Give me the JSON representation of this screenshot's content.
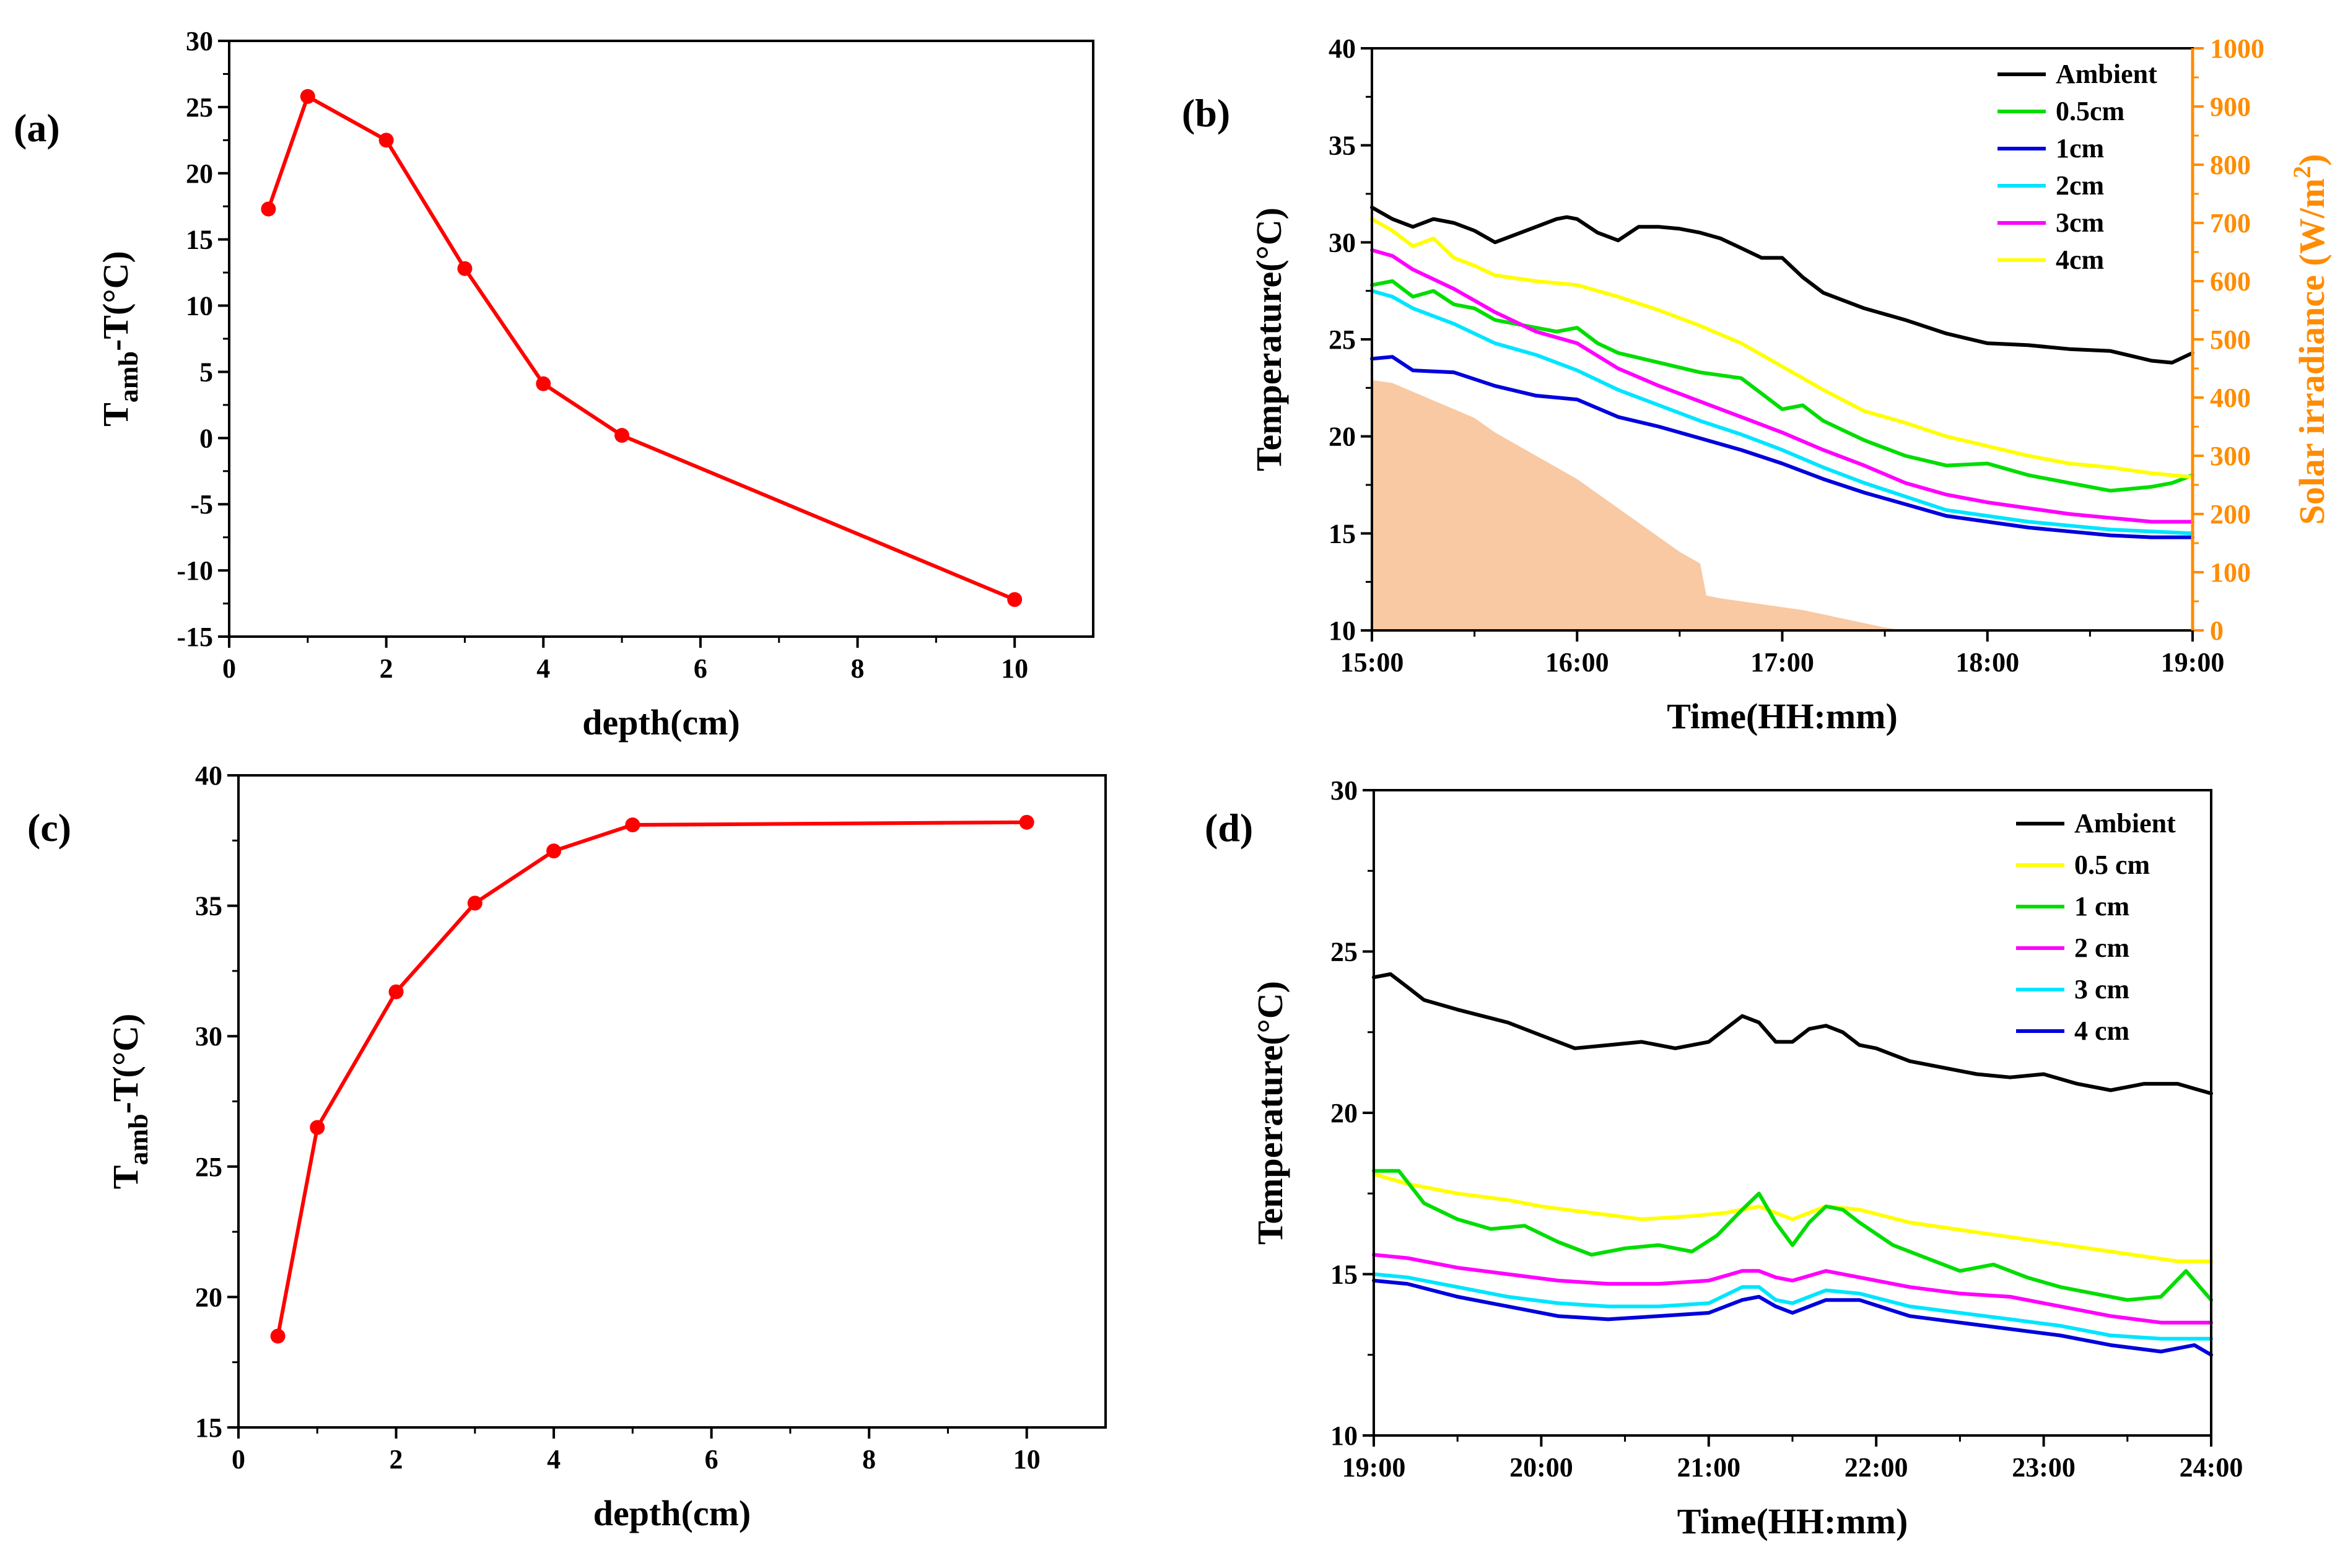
{
  "chart_data": [
    {
      "panel": "(a)",
      "type": "line",
      "xlabel": "depth(cm)",
      "ylabel_main": "T",
      "ylabel_sub": "amb",
      "ylabel_tail": "-T(°C)",
      "xlim": [
        0,
        11
      ],
      "ylim": [
        -15,
        30
      ],
      "xticks": [
        0,
        2,
        4,
        6,
        8,
        10
      ],
      "yticks": [
        -15,
        -10,
        -5,
        0,
        5,
        10,
        15,
        20,
        25,
        30
      ],
      "color": "#ff0000",
      "x": [
        0.5,
        1,
        2,
        3,
        4,
        5,
        10
      ],
      "y": [
        17.3,
        25.8,
        22.5,
        12.8,
        4.1,
        0.2,
        -12.2
      ]
    },
    {
      "panel": "(b)",
      "type": "line",
      "xlabel": "Time(HH:mm)",
      "ylabel": "Temperature(°C)",
      "y2label": "Solar irradiance (W/m",
      "y2label_sup": "2",
      "y2label_tail": ")",
      "xticks": [
        "15:00",
        "16:00",
        "17:00",
        "18:00",
        "19:00"
      ],
      "xlim": [
        15,
        19
      ],
      "ylim": [
        10,
        40
      ],
      "yticks": [
        10,
        15,
        20,
        25,
        30,
        35,
        40
      ],
      "y2lim": [
        0,
        1000
      ],
      "y2ticks": [
        0,
        100,
        200,
        300,
        400,
        500,
        600,
        700,
        800,
        900,
        1000
      ],
      "y2color": "#ff8c00",
      "irradiance": {
        "color": "#f8c9a2",
        "x": [
          15,
          15.1,
          15.2,
          15.3,
          15.4,
          15.5,
          15.6,
          15.7,
          15.8,
          15.9,
          16.0,
          16.1,
          16.2,
          16.3,
          16.4,
          16.5,
          16.6,
          16.63,
          16.7,
          16.9,
          17.1,
          17.3,
          17.5,
          17.6
        ],
        "y": [
          430,
          425,
          410,
          395,
          380,
          365,
          340,
          320,
          300,
          280,
          260,
          235,
          210,
          185,
          160,
          135,
          115,
          60,
          55,
          45,
          35,
          20,
          5,
          0
        ]
      },
      "series": [
        {
          "name": "Ambient",
          "color": "#000000",
          "x": [
            15,
            15.1,
            15.2,
            15.3,
            15.4,
            15.5,
            15.6,
            15.7,
            15.8,
            15.9,
            15.95,
            16.0,
            16.1,
            16.2,
            16.3,
            16.4,
            16.5,
            16.6,
            16.7,
            16.8,
            16.9,
            17.0,
            17.1,
            17.2,
            17.4,
            17.6,
            17.8,
            18.0,
            18.2,
            18.4,
            18.6,
            18.8,
            18.9,
            19.0
          ],
          "y": [
            31.8,
            31.2,
            30.8,
            31.2,
            31.0,
            30.6,
            30.0,
            30.4,
            30.8,
            31.2,
            31.3,
            31.2,
            30.5,
            30.1,
            30.8,
            30.8,
            30.7,
            30.5,
            30.2,
            29.7,
            29.2,
            29.2,
            28.2,
            27.4,
            26.6,
            26.0,
            25.3,
            24.8,
            24.7,
            24.5,
            24.4,
            23.9,
            23.8,
            24.3
          ]
        },
        {
          "name": "0.5cm",
          "color": "#00dd00",
          "x": [
            15,
            15.1,
            15.2,
            15.3,
            15.4,
            15.5,
            15.6,
            15.7,
            15.8,
            15.9,
            16.0,
            16.1,
            16.2,
            16.4,
            16.6,
            16.8,
            16.9,
            17.0,
            17.1,
            17.2,
            17.3,
            17.4,
            17.6,
            17.8,
            18.0,
            18.2,
            18.4,
            18.6,
            18.8,
            18.9,
            19.0
          ],
          "y": [
            27.8,
            28.0,
            27.2,
            27.5,
            26.8,
            26.6,
            26.0,
            25.8,
            25.6,
            25.4,
            25.6,
            24.8,
            24.3,
            23.8,
            23.3,
            23.0,
            22.2,
            21.4,
            21.6,
            20.8,
            20.3,
            19.8,
            19.0,
            18.5,
            18.6,
            18.0,
            17.6,
            17.2,
            17.4,
            17.6,
            18.0
          ]
        },
        {
          "name": "1cm",
          "color": "#0000dd",
          "x": [
            15,
            15.1,
            15.2,
            15.4,
            15.6,
            15.8,
            16.0,
            16.2,
            16.4,
            16.6,
            16.8,
            17.0,
            17.2,
            17.4,
            17.6,
            17.8,
            18.0,
            18.2,
            18.4,
            18.6,
            18.8,
            19.0
          ],
          "y": [
            24.0,
            24.1,
            23.4,
            23.3,
            22.6,
            22.1,
            21.9,
            21.0,
            20.5,
            19.9,
            19.3,
            18.6,
            17.8,
            17.1,
            16.5,
            15.9,
            15.6,
            15.3,
            15.1,
            14.9,
            14.8,
            14.8
          ]
        },
        {
          "name": "2cm",
          "color": "#00e5ff",
          "x": [
            15,
            15.1,
            15.2,
            15.4,
            15.6,
            15.8,
            16.0,
            16.2,
            16.4,
            16.6,
            16.8,
            17.0,
            17.2,
            17.4,
            17.6,
            17.8,
            18.0,
            18.2,
            18.4,
            18.6,
            18.8,
            19.0
          ],
          "y": [
            27.5,
            27.2,
            26.6,
            25.8,
            24.8,
            24.2,
            23.4,
            22.4,
            21.6,
            20.8,
            20.1,
            19.3,
            18.4,
            17.6,
            16.9,
            16.2,
            15.9,
            15.6,
            15.4,
            15.2,
            15.1,
            15.0
          ]
        },
        {
          "name": "3cm",
          "color": "#ff00ff",
          "x": [
            15,
            15.1,
            15.2,
            15.4,
            15.6,
            15.8,
            16.0,
            16.2,
            16.4,
            16.6,
            16.8,
            17.0,
            17.2,
            17.4,
            17.6,
            17.8,
            18.0,
            18.2,
            18.4,
            18.6,
            18.8,
            19.0
          ],
          "y": [
            29.6,
            29.3,
            28.6,
            27.6,
            26.4,
            25.4,
            24.8,
            23.5,
            22.6,
            21.8,
            21.0,
            20.2,
            19.3,
            18.5,
            17.6,
            17.0,
            16.6,
            16.3,
            16.0,
            15.8,
            15.6,
            15.6
          ]
        },
        {
          "name": "4cm",
          "color": "#ffff00",
          "x": [
            15,
            15.1,
            15.2,
            15.3,
            15.4,
            15.5,
            15.6,
            15.8,
            16.0,
            16.2,
            16.4,
            16.6,
            16.8,
            17.0,
            17.2,
            17.4,
            17.6,
            17.8,
            18.0,
            18.2,
            18.4,
            18.6,
            18.8,
            19.0
          ],
          "y": [
            31.2,
            30.6,
            29.8,
            30.2,
            29.2,
            28.8,
            28.3,
            28.0,
            27.8,
            27.2,
            26.5,
            25.7,
            24.8,
            23.6,
            22.4,
            21.3,
            20.7,
            20.0,
            19.5,
            19.0,
            18.6,
            18.4,
            18.1,
            17.9
          ]
        }
      ]
    },
    {
      "panel": "(c)",
      "type": "line",
      "xlabel": "depth(cm)",
      "ylabel_main": "T",
      "ylabel_sub": "amb",
      "ylabel_tail": "-T(°C)",
      "xlim": [
        0,
        11
      ],
      "ylim": [
        15,
        40
      ],
      "xticks": [
        0,
        2,
        4,
        6,
        8,
        10
      ],
      "yticks": [
        15,
        20,
        25,
        30,
        35,
        40
      ],
      "color": "#ff0000",
      "x": [
        0.5,
        1,
        2,
        3,
        4,
        5,
        10
      ],
      "y": [
        18.5,
        26.5,
        31.7,
        35.1,
        37.1,
        38.1,
        38.2
      ]
    },
    {
      "panel": "(d)",
      "type": "line",
      "xlabel": "Time(HH:mm)",
      "ylabel": "Temperature(°C)",
      "xticks": [
        "19:00",
        "20:00",
        "21:00",
        "22:00",
        "23:00",
        "24:00"
      ],
      "xlim": [
        19,
        24
      ],
      "ylim": [
        10,
        30
      ],
      "yticks": [
        10,
        15,
        20,
        25,
        30
      ],
      "series": [
        {
          "name": "Ambient",
          "color": "#000000",
          "x": [
            19.0,
            19.1,
            19.2,
            19.3,
            19.5,
            19.8,
            20.0,
            20.2,
            20.4,
            20.6,
            20.8,
            21.0,
            21.1,
            21.2,
            21.3,
            21.4,
            21.5,
            21.6,
            21.7,
            21.8,
            21.9,
            22.0,
            22.2,
            22.4,
            22.6,
            22.8,
            23.0,
            23.2,
            23.4,
            23.6,
            23.8,
            24.0
          ],
          "y": [
            24.2,
            24.3,
            23.9,
            23.5,
            23.2,
            22.8,
            22.4,
            22.0,
            22.1,
            22.2,
            22.0,
            22.2,
            22.6,
            23.0,
            22.8,
            22.2,
            22.2,
            22.6,
            22.7,
            22.5,
            22.1,
            22.0,
            21.6,
            21.4,
            21.2,
            21.1,
            21.2,
            20.9,
            20.7,
            20.9,
            20.9,
            20.6
          ]
        },
        {
          "name": "0.5 cm",
          "color": "#ffff00",
          "x": [
            19.0,
            19.2,
            19.5,
            19.8,
            20.0,
            20.3,
            20.6,
            20.9,
            21.1,
            21.3,
            21.5,
            21.7,
            21.9,
            22.2,
            22.6,
            23.0,
            23.4,
            23.8,
            24.0
          ],
          "y": [
            18.1,
            17.8,
            17.5,
            17.3,
            17.1,
            16.9,
            16.7,
            16.8,
            16.9,
            17.1,
            16.7,
            17.1,
            17.0,
            16.6,
            16.3,
            16.0,
            15.7,
            15.4,
            15.4
          ]
        },
        {
          "name": "1 cm",
          "color": "#00dd00",
          "x": [
            19.0,
            19.15,
            19.3,
            19.5,
            19.7,
            19.9,
            20.1,
            20.3,
            20.5,
            20.7,
            20.9,
            21.05,
            21.2,
            21.3,
            21.4,
            21.5,
            21.6,
            21.7,
            21.8,
            21.9,
            22.1,
            22.3,
            22.5,
            22.7,
            22.9,
            23.1,
            23.3,
            23.5,
            23.7,
            23.85,
            24.0
          ],
          "y": [
            18.2,
            18.2,
            17.2,
            16.7,
            16.4,
            16.5,
            16.0,
            15.6,
            15.8,
            15.9,
            15.7,
            16.2,
            17.0,
            17.5,
            16.6,
            15.9,
            16.6,
            17.1,
            17.0,
            16.6,
            15.9,
            15.5,
            15.1,
            15.3,
            14.9,
            14.6,
            14.4,
            14.2,
            14.3,
            15.1,
            14.2
          ]
        },
        {
          "name": "2 cm",
          "color": "#ff00ff",
          "x": [
            19.0,
            19.2,
            19.5,
            19.8,
            20.1,
            20.4,
            20.7,
            21.0,
            21.2,
            21.3,
            21.4,
            21.5,
            21.7,
            21.9,
            22.2,
            22.5,
            22.8,
            23.1,
            23.4,
            23.7,
            24.0
          ],
          "y": [
            15.6,
            15.5,
            15.2,
            15.0,
            14.8,
            14.7,
            14.7,
            14.8,
            15.1,
            15.1,
            14.9,
            14.8,
            15.1,
            14.9,
            14.6,
            14.4,
            14.3,
            14.0,
            13.7,
            13.5,
            13.5
          ]
        },
        {
          "name": "3 cm",
          "color": "#00e5ff",
          "x": [
            19.0,
            19.2,
            19.5,
            19.8,
            20.1,
            20.4,
            20.7,
            21.0,
            21.2,
            21.3,
            21.4,
            21.5,
            21.7,
            21.9,
            22.2,
            22.5,
            22.8,
            23.1,
            23.4,
            23.7,
            24.0
          ],
          "y": [
            15.0,
            14.9,
            14.6,
            14.3,
            14.1,
            14.0,
            14.0,
            14.1,
            14.6,
            14.6,
            14.2,
            14.1,
            14.5,
            14.4,
            14.0,
            13.8,
            13.6,
            13.4,
            13.1,
            13.0,
            13.0
          ]
        },
        {
          "name": "4 cm",
          "color": "#0000dd",
          "x": [
            19.0,
            19.2,
            19.5,
            19.8,
            20.1,
            20.4,
            20.7,
            21.0,
            21.2,
            21.3,
            21.4,
            21.5,
            21.7,
            21.9,
            22.2,
            22.5,
            22.8,
            23.1,
            23.4,
            23.7,
            23.9,
            24.0
          ],
          "y": [
            14.8,
            14.7,
            14.3,
            14.0,
            13.7,
            13.6,
            13.7,
            13.8,
            14.2,
            14.3,
            14.0,
            13.8,
            14.2,
            14.2,
            13.7,
            13.5,
            13.3,
            13.1,
            12.8,
            12.6,
            12.8,
            12.5
          ]
        }
      ]
    }
  ]
}
